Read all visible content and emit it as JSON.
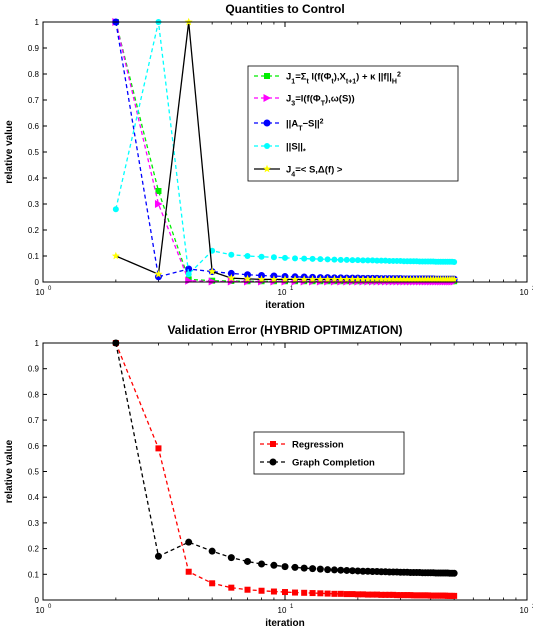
{
  "chart_data": [
    {
      "type": "line",
      "title": "Quantities to Control",
      "xlabel": "iteration",
      "ylabel": "relative value",
      "xscale": "log",
      "xlim": [
        1,
        100
      ],
      "ylim": [
        0,
        1
      ],
      "xticks": [
        {
          "base": "10",
          "exp": "0"
        },
        {
          "base": "10",
          "exp": "1"
        },
        {
          "base": "10",
          "exp": "2"
        }
      ],
      "yticks": [
        "0",
        "0.1",
        "0.2",
        "0.3",
        "0.4",
        "0.5",
        "0.6",
        "0.7",
        "0.8",
        "0.9",
        "1"
      ],
      "legend_position": "top-right",
      "series": [
        {
          "name": "J_1=Σ_t l(f(Φ_t),X_t+1) + κ ||f||_H^2",
          "legend_parts": [
            [
              "J",
              ""
            ],
            [
              "1",
              "sub"
            ],
            [
              "=Σ",
              ""
            ],
            [
              "t",
              "sub"
            ],
            [
              " l(f(Φ",
              ""
            ],
            [
              "t",
              "sub"
            ],
            [
              "),X",
              ""
            ],
            [
              "t+1",
              "sub"
            ],
            [
              ") + κ ||f||",
              ""
            ],
            [
              "H",
              "sub"
            ],
            [
              "2",
              "sup"
            ]
          ],
          "color": "#00ee00",
          "line": "dashed",
          "marker": "square",
          "x": [
            2,
            3,
            4,
            5,
            6,
            7,
            8,
            9,
            10,
            11,
            12,
            13,
            14,
            15,
            16,
            17,
            18,
            19,
            20,
            21,
            22,
            23,
            24,
            25,
            26,
            27,
            28,
            29,
            30,
            31,
            32,
            33,
            34,
            35,
            36,
            37,
            38,
            39,
            40,
            41,
            42,
            43,
            44,
            45,
            46,
            47,
            48,
            49,
            50
          ],
          "y": [
            1,
            0.35,
            0.01,
            0.005,
            0.004,
            0.003,
            0.003,
            0.003,
            0.003,
            0.003,
            0.003,
            0.003,
            0.003,
            0.003,
            0.003,
            0.003,
            0.003,
            0.003,
            0.003,
            0.003,
            0.003,
            0.003,
            0.003,
            0.003,
            0.003,
            0.003,
            0.003,
            0.003,
            0.003,
            0.003,
            0.003,
            0.003,
            0.003,
            0.003,
            0.003,
            0.003,
            0.003,
            0.003,
            0.003,
            0.003,
            0.003,
            0.003,
            0.003,
            0.003,
            0.003,
            0.003,
            0.003,
            0.003,
            0.003
          ]
        },
        {
          "name": "J_3=l(f(Φ_T),ω(S))",
          "legend_parts": [
            [
              "J",
              ""
            ],
            [
              "3",
              "sub"
            ],
            [
              "=l(f(Φ",
              ""
            ],
            [
              "T",
              "sub"
            ],
            [
              "),ω(S))",
              ""
            ]
          ],
          "color": "#ff00ff",
          "line": "dashed",
          "marker": "triangle-right",
          "x": [
            2,
            3,
            4,
            5,
            6,
            7,
            8,
            9,
            10,
            11,
            12,
            13,
            14,
            15,
            16,
            17,
            18,
            19,
            20,
            21,
            22,
            23,
            24,
            25,
            26,
            27,
            28,
            29,
            30,
            31,
            32,
            33,
            34,
            35,
            36,
            37,
            38,
            39,
            40,
            41,
            42,
            43,
            44,
            45,
            46,
            47,
            48,
            49,
            50
          ],
          "y": [
            1,
            0.3,
            0.005,
            0.002,
            0.002,
            0.002,
            0.002,
            0.002,
            0.002,
            0.002,
            0.002,
            0.002,
            0.002,
            0.002,
            0.002,
            0.002,
            0.002,
            0.002,
            0.002,
            0.002,
            0.002,
            0.002,
            0.002,
            0.002,
            0.002,
            0.002,
            0.002,
            0.002,
            0.002,
            0.002,
            0.002,
            0.002,
            0.002,
            0.002,
            0.002,
            0.002,
            0.002,
            0.002,
            0.002,
            0.002,
            0.002,
            0.002,
            0.002,
            0.002,
            0.002,
            0.002,
            0.002,
            0.002,
            0.002
          ]
        },
        {
          "name": "||A_T−S||^2",
          "legend_parts": [
            [
              "||A",
              ""
            ],
            [
              "T",
              "sub"
            ],
            [
              "−S||",
              ""
            ],
            [
              "2",
              "sup"
            ]
          ],
          "color": "#0000ff",
          "line": "dashed",
          "marker": "circle",
          "x": [
            2,
            3,
            4,
            5,
            6,
            7,
            8,
            9,
            10,
            11,
            12,
            13,
            14,
            15,
            16,
            17,
            18,
            19,
            20,
            21,
            22,
            23,
            24,
            25,
            26,
            27,
            28,
            29,
            30,
            31,
            32,
            33,
            34,
            35,
            36,
            37,
            38,
            39,
            40,
            41,
            42,
            43,
            44,
            45,
            46,
            47,
            48,
            49,
            50
          ],
          "y": [
            1,
            0.02,
            0.05,
            0.04,
            0.033,
            0.028,
            0.025,
            0.023,
            0.021,
            0.02,
            0.019,
            0.018,
            0.017,
            0.017,
            0.016,
            0.016,
            0.015,
            0.015,
            0.015,
            0.014,
            0.014,
            0.014,
            0.014,
            0.013,
            0.013,
            0.013,
            0.013,
            0.013,
            0.013,
            0.012,
            0.012,
            0.012,
            0.012,
            0.012,
            0.012,
            0.012,
            0.012,
            0.012,
            0.012,
            0.012,
            0.011,
            0.011,
            0.011,
            0.011,
            0.011,
            0.011,
            0.011,
            0.011,
            0.011
          ]
        },
        {
          "name": "||S||_*",
          "legend_parts": [
            [
              "||S||",
              ""
            ],
            [
              "*",
              "sub"
            ]
          ],
          "color": "#00ffff",
          "line": "dashed",
          "marker": "circle-small",
          "x": [
            2,
            3,
            4,
            5,
            6,
            7,
            8,
            9,
            10,
            11,
            12,
            13,
            14,
            15,
            16,
            17,
            18,
            19,
            20,
            21,
            22,
            23,
            24,
            25,
            26,
            27,
            28,
            29,
            30,
            31,
            32,
            33,
            34,
            35,
            36,
            37,
            38,
            39,
            40,
            41,
            42,
            43,
            44,
            45,
            46,
            47,
            48,
            49,
            50
          ],
          "y": [
            0.28,
            1,
            0.03,
            0.12,
            0.105,
            0.1,
            0.097,
            0.095,
            0.093,
            0.091,
            0.09,
            0.089,
            0.088,
            0.087,
            0.086,
            0.085,
            0.085,
            0.084,
            0.084,
            0.083,
            0.083,
            0.083,
            0.082,
            0.082,
            0.082,
            0.081,
            0.081,
            0.081,
            0.081,
            0.08,
            0.08,
            0.08,
            0.08,
            0.08,
            0.079,
            0.079,
            0.079,
            0.079,
            0.079,
            0.079,
            0.078,
            0.078,
            0.078,
            0.078,
            0.078,
            0.078,
            0.078,
            0.078,
            0.077
          ]
        },
        {
          "name": "J_4=< S,Δ(f) >",
          "legend_parts": [
            [
              "J",
              ""
            ],
            [
              "4",
              "sub"
            ],
            [
              "=< S,Δ(f) >",
              ""
            ]
          ],
          "color": "#000000",
          "line": "solid",
          "marker": "star",
          "marker_color": "#ffff00",
          "x": [
            2,
            3,
            4,
            5,
            6,
            7,
            8,
            9,
            10,
            11,
            12,
            13,
            14,
            15,
            16,
            17,
            18,
            19,
            20,
            21,
            22,
            23,
            24,
            25,
            26,
            27,
            28,
            29,
            30,
            31,
            32,
            33,
            34,
            35,
            36,
            37,
            38,
            39,
            40,
            41,
            42,
            43,
            44,
            45,
            46,
            47,
            48,
            49,
            50
          ],
          "y": [
            0.1,
            0.03,
            1,
            0.04,
            0.015,
            0.012,
            0.01,
            0.01,
            0.01,
            0.01,
            0.01,
            0.01,
            0.01,
            0.01,
            0.01,
            0.01,
            0.01,
            0.01,
            0.01,
            0.01,
            0.01,
            0.01,
            0.01,
            0.01,
            0.01,
            0.01,
            0.01,
            0.01,
            0.01,
            0.01,
            0.01,
            0.01,
            0.01,
            0.01,
            0.01,
            0.01,
            0.01,
            0.01,
            0.01,
            0.01,
            0.01,
            0.01,
            0.01,
            0.01,
            0.01,
            0.01,
            0.01,
            0.01,
            0.01
          ]
        }
      ]
    },
    {
      "type": "line",
      "title": "Validation Error (HYBRID OPTIMIZATION)",
      "xlabel": "iteration",
      "ylabel": "relative value",
      "xscale": "log",
      "xlim": [
        1,
        100
      ],
      "ylim": [
        0,
        1
      ],
      "xticks": [
        {
          "base": "10",
          "exp": "0"
        },
        {
          "base": "10",
          "exp": "1"
        },
        {
          "base": "10",
          "exp": "2"
        }
      ],
      "yticks": [
        "0",
        "0.1",
        "0.2",
        "0.3",
        "0.4",
        "0.5",
        "0.6",
        "0.7",
        "0.8",
        "0.9",
        "1"
      ],
      "legend_position": "center-right",
      "series": [
        {
          "name": "Regression",
          "legend_parts": [
            [
              "Regression",
              ""
            ]
          ],
          "color": "#ff0000",
          "line": "dashed",
          "marker": "square",
          "x": [
            2,
            3,
            4,
            5,
            6,
            7,
            8,
            9,
            10,
            11,
            12,
            13,
            14,
            15,
            16,
            17,
            18,
            19,
            20,
            21,
            22,
            23,
            24,
            25,
            26,
            27,
            28,
            29,
            30,
            31,
            32,
            33,
            34,
            35,
            36,
            37,
            38,
            39,
            40,
            41,
            42,
            43,
            44,
            45,
            46,
            47,
            48,
            49,
            50
          ],
          "y": [
            1,
            0.59,
            0.11,
            0.065,
            0.048,
            0.04,
            0.036,
            0.033,
            0.031,
            0.029,
            0.028,
            0.027,
            0.026,
            0.025,
            0.024,
            0.024,
            0.023,
            0.023,
            0.022,
            0.022,
            0.021,
            0.021,
            0.021,
            0.02,
            0.02,
            0.02,
            0.02,
            0.019,
            0.019,
            0.019,
            0.019,
            0.019,
            0.018,
            0.018,
            0.018,
            0.018,
            0.018,
            0.018,
            0.017,
            0.017,
            0.017,
            0.017,
            0.017,
            0.017,
            0.017,
            0.016,
            0.016,
            0.016,
            0.016
          ]
        },
        {
          "name": "Graph Completion",
          "legend_parts": [
            [
              "Graph Completion",
              ""
            ]
          ],
          "color": "#000000",
          "line": "dashed",
          "marker": "circle",
          "x": [
            2,
            3,
            4,
            5,
            6,
            7,
            8,
            9,
            10,
            11,
            12,
            13,
            14,
            15,
            16,
            17,
            18,
            19,
            20,
            21,
            22,
            23,
            24,
            25,
            26,
            27,
            28,
            29,
            30,
            31,
            32,
            33,
            34,
            35,
            36,
            37,
            38,
            39,
            40,
            41,
            42,
            43,
            44,
            45,
            46,
            47,
            48,
            49,
            50
          ],
          "y": [
            1,
            0.17,
            0.225,
            0.19,
            0.165,
            0.15,
            0.14,
            0.135,
            0.13,
            0.127,
            0.124,
            0.122,
            0.12,
            0.118,
            0.117,
            0.116,
            0.115,
            0.114,
            0.113,
            0.112,
            0.112,
            0.111,
            0.111,
            0.11,
            0.11,
            0.109,
            0.109,
            0.109,
            0.108,
            0.108,
            0.108,
            0.107,
            0.107,
            0.107,
            0.107,
            0.106,
            0.106,
            0.106,
            0.106,
            0.106,
            0.105,
            0.105,
            0.105,
            0.105,
            0.105,
            0.105,
            0.104,
            0.104,
            0.104
          ]
        }
      ]
    }
  ]
}
